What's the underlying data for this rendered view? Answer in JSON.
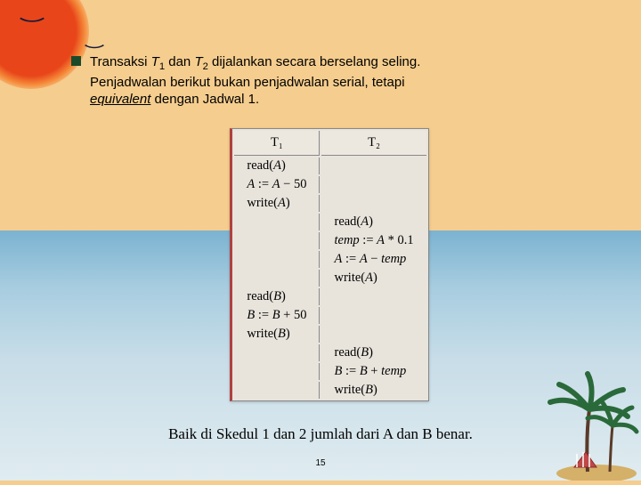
{
  "bullet": {
    "line1_pre": "Transaksi ",
    "t1": "T",
    "t1sub": "1",
    "mid1": " dan ",
    "t2": "T",
    "t2sub": "2",
    "line1_post": " dijalankan secara berselang seling.",
    "line2": "Penjadwalan berikut bukan penjadwalan serial, tetapi",
    "emph": "equivalent",
    "line3_post": " dengan Jadwal 1."
  },
  "table": {
    "h1": "T₁",
    "h2": "T₂",
    "rows": [
      [
        "read(A)",
        ""
      ],
      [
        "A := A − 50",
        ""
      ],
      [
        "write(A)",
        ""
      ],
      [
        "",
        "read(A)"
      ],
      [
        "",
        "temp := A * 0.1"
      ],
      [
        "",
        "A := A − temp"
      ],
      [
        "",
        "write(A)"
      ],
      [
        "read(B)",
        ""
      ],
      [
        "B := B + 50",
        ""
      ],
      [
        "write(B)",
        ""
      ],
      [
        "",
        "read(B)"
      ],
      [
        "",
        "B := B + temp"
      ],
      [
        "",
        "write(B)"
      ]
    ]
  },
  "bottom": "Baik di Skedul 1 dan 2 jumlah dari A dan B benar.",
  "pagenum": "15",
  "colors": {
    "bullet_color": "#1a4a2a",
    "table_bg": "#e8e4dc"
  }
}
